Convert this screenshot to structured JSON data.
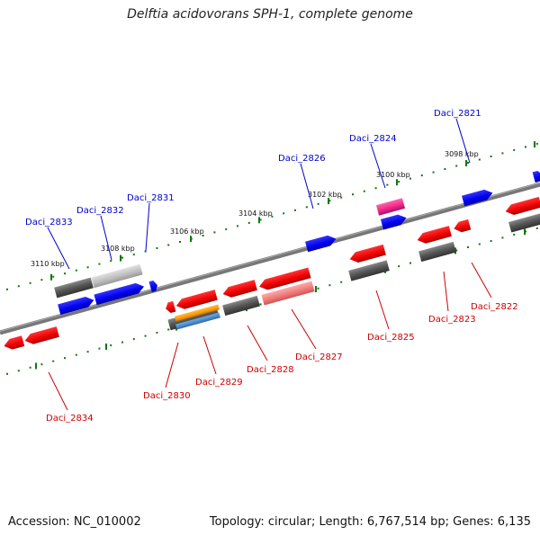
{
  "title": "Delftia acidovorans SPH-1, complete genome",
  "footer": {
    "accession": "Accession: NC_010002",
    "summary": "Topology: circular; Length: 6,767,514 bp; Genes: 6,135"
  },
  "colors": {
    "forward_gene": "#0000ee",
    "reverse_gene": "#ee0000",
    "gray_feature": "#555555",
    "light_gray_feature": "#bbbbbb",
    "pink_gene": "#ee2288",
    "orange_feature": "#ff9900",
    "light_red_feature": "#ee7777",
    "steel_feature": "#4488cc",
    "tick_color": "#117711",
    "backbone": "#777777",
    "label_blue": "#0000cc",
    "label_red": "#cc0000"
  },
  "kbp_labels": [
    "3110 kbp",
    "3108 kbp",
    "3106 kbp",
    "3104 kbp",
    "3102 kbp",
    "3100 kbp",
    "3098 kbp"
  ],
  "gene_labels_top": [
    "Daci_2833",
    "Daci_2832",
    "Daci_2831",
    "Daci_2826",
    "Daci_2824",
    "Daci_2821"
  ],
  "gene_labels_bottom": [
    "Daci_2834",
    "Daci_2830",
    "Daci_2829",
    "Daci_2828",
    "Daci_2827",
    "Daci_2825",
    "Daci_2823",
    "Daci_2822"
  ]
}
